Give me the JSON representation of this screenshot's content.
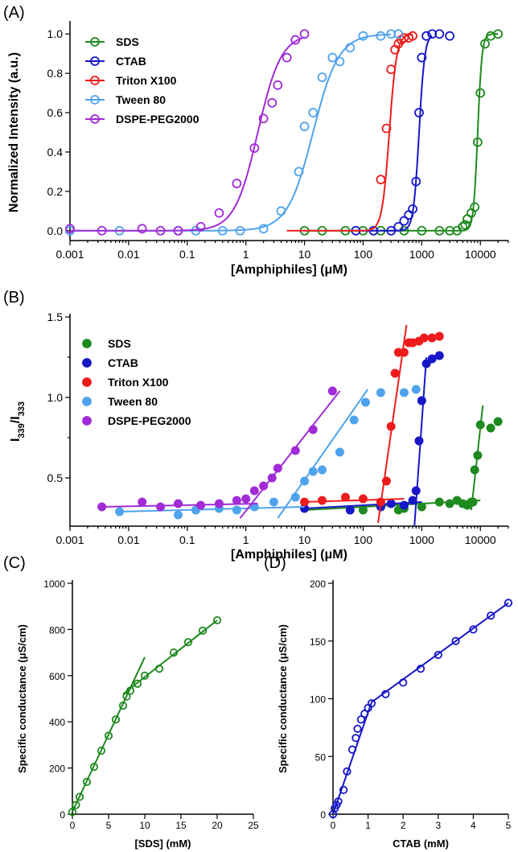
{
  "panels": {
    "A": "(A)",
    "B": "(B)",
    "C": "(C)",
    "D": "(D)"
  },
  "colors": {
    "SDS": "#1f8a1f",
    "CTAB": "#1717c8",
    "Triton X100": "#ee1c1c",
    "Tween 80": "#4fa3ec",
    "DSPE-PEG2000": "#a12bd6"
  },
  "chart_data": [
    {
      "id": "A",
      "type": "scatter",
      "xscale": "log",
      "xlim": [
        0.001,
        30000
      ],
      "ylim": [
        -0.05,
        1.05
      ],
      "xticks": [
        "0.001",
        "0.01",
        "0.1",
        "1",
        "10",
        "100",
        "1000",
        "10000"
      ],
      "yticks": [
        "0.0",
        "0.2",
        "0.4",
        "0.6",
        "0.8",
        "1.0"
      ],
      "xlabel": "[Amphiphiles] (μM)",
      "ylabel": "Normalized Intensity (a.u.)",
      "legend": "top-left",
      "markers": "open-circle",
      "fit": "sigmoid",
      "series": [
        {
          "name": "SDS",
          "x": [
            10,
            20,
            50,
            100,
            200,
            500,
            1000,
            2000,
            3000,
            4000,
            5000,
            5500,
            6000,
            7000,
            8000,
            9000,
            10000,
            12000,
            15000,
            20000
          ],
          "y": [
            0.0,
            0.0,
            0.0,
            0.0,
            0.0,
            0.0,
            0.0,
            0.0,
            0.0,
            0.0,
            0.02,
            0.03,
            0.06,
            0.09,
            0.12,
            0.45,
            0.7,
            0.95,
            0.99,
            1.0
          ],
          "fit_mid": 9000,
          "fit_slope": 12,
          "fit_start": 10,
          "fit_end": 20000
        },
        {
          "name": "CTAB",
          "x": [
            75,
            150,
            300,
            400,
            500,
            600,
            700,
            800,
            900,
            1000,
            1200,
            1500,
            2000,
            3000
          ],
          "y": [
            0.0,
            0.0,
            0.0,
            0.02,
            0.05,
            0.08,
            0.11,
            0.25,
            0.6,
            0.88,
            0.99,
            1.0,
            1.0,
            0.99
          ],
          "fit_mid": 900,
          "fit_slope": 9,
          "fit_start": 75,
          "fit_end": 1500
        },
        {
          "name": "Triton X100",
          "x": [
            200,
            250,
            300,
            350,
            400,
            450,
            500,
            600,
            700
          ],
          "y": [
            0.26,
            0.52,
            0.82,
            0.92,
            0.95,
            0.97,
            0.98,
            0.98,
            0.99
          ],
          "fit_mid": 280,
          "fit_slope": 7,
          "fit_start": 5,
          "fit_end": 700
        },
        {
          "name": "Tween 80",
          "x": [
            0.001,
            0.007,
            0.07,
            0.14,
            0.4,
            0.8,
            2,
            4,
            8,
            10,
            14,
            20,
            30,
            40,
            60,
            100,
            200,
            300,
            400
          ],
          "y": [
            0.0,
            0.0,
            0.0,
            0.0,
            0.0,
            0.0,
            0.01,
            0.1,
            0.3,
            0.53,
            0.6,
            0.78,
            0.88,
            0.86,
            0.93,
            0.99,
            0.99,
            1.0,
            1.0
          ],
          "fit_mid": 14,
          "fit_slope": 2.0,
          "fit_start": 0.001,
          "fit_end": 300
        },
        {
          "name": "DSPE-PEG2000",
          "x": [
            0.001,
            0.0035,
            0.017,
            0.035,
            0.07,
            0.17,
            0.35,
            0.7,
            1.4,
            2,
            2.8,
            3.5,
            5,
            7,
            10
          ],
          "y": [
            0.01,
            0.0,
            0.01,
            0.0,
            0.0,
            0.02,
            0.09,
            0.24,
            0.42,
            0.57,
            0.65,
            0.74,
            0.88,
            0.97,
            1.0
          ],
          "fit_mid": 1.6,
          "fit_slope": 2.2,
          "fit_start": 0.001,
          "fit_end": 10
        }
      ]
    },
    {
      "id": "B",
      "type": "scatter",
      "xscale": "log",
      "xlim": [
        0.001,
        30000
      ],
      "ylim": [
        0.2,
        1.5
      ],
      "xticks": [
        "0.001",
        "0.01",
        "0.1",
        "1",
        "10",
        "100",
        "1000",
        "10000"
      ],
      "yticks": [
        "0.5",
        "1.0",
        "1.5"
      ],
      "xlabel": "[Amphiphiles] (μM)",
      "ylabel": "I339/I333",
      "legend": "top-left",
      "markers": "filled-circle",
      "series": [
        {
          "name": "SDS",
          "x": [
            100,
            400,
            500,
            1000,
            2000,
            3000,
            4000,
            5000,
            6000,
            7000,
            7500,
            8000,
            9000,
            10000,
            15000,
            20000
          ],
          "y": [
            0.3,
            0.3,
            0.31,
            0.32,
            0.35,
            0.34,
            0.36,
            0.34,
            0.33,
            0.35,
            0.35,
            0.55,
            0.64,
            0.83,
            0.81,
            0.85
          ],
          "lines": [
            [
              [
                10,
                0.3
              ],
              [
                10000,
                0.36
              ]
            ],
            [
              [
                7000,
                0.3
              ],
              [
                11000,
                0.95
              ]
            ]
          ]
        },
        {
          "name": "CTAB",
          "x": [
            10,
            60,
            200,
            300,
            500,
            700,
            800,
            900,
            1000,
            1200,
            1500,
            2000
          ],
          "y": [
            0.31,
            0.3,
            0.32,
            0.34,
            0.33,
            0.36,
            0.42,
            0.73,
            0.98,
            1.21,
            1.24,
            1.26
          ],
          "lines": [
            [
              [
                10,
                0.31
              ],
              [
                1000,
                0.35
              ]
            ],
            [
              [
                750,
                0.2
              ],
              [
                1200,
                1.25
              ]
            ]
          ]
        },
        {
          "name": "Triton X100",
          "x": [
            10,
            20,
            50,
            100,
            200,
            250,
            300,
            350,
            400,
            500,
            600,
            700,
            900,
            1100,
            1500,
            2000
          ],
          "y": [
            0.35,
            0.36,
            0.38,
            0.37,
            0.35,
            0.48,
            0.82,
            1.15,
            1.28,
            1.28,
            1.34,
            1.34,
            1.35,
            1.37,
            1.37,
            1.38
          ],
          "lines": [
            [
              [
                10,
                0.35
              ],
              [
                500,
                0.37
              ]
            ],
            [
              [
                180,
                0.22
              ],
              [
                550,
                1.45
              ]
            ]
          ]
        },
        {
          "name": "Tween 80",
          "x": [
            0.007,
            0.07,
            0.14,
            0.35,
            0.7,
            1.4,
            3,
            7,
            10,
            14,
            20,
            40,
            70,
            110,
            200,
            500,
            800
          ],
          "y": [
            0.29,
            0.27,
            0.3,
            0.31,
            0.3,
            0.32,
            0.35,
            0.38,
            0.48,
            0.54,
            0.55,
            0.66,
            0.86,
            0.97,
            1.03,
            1.03,
            1.05
          ],
          "lines": [
            [
              [
                0.007,
                0.29
              ],
              [
                10,
                0.32
              ]
            ],
            [
              [
                3.5,
                0.25
              ],
              [
                120,
                1.05
              ]
            ]
          ]
        },
        {
          "name": "DSPE-PEG2000",
          "x": [
            0.0035,
            0.017,
            0.035,
            0.07,
            0.17,
            0.35,
            0.7,
            1,
            1.4,
            2,
            2.8,
            3.5,
            7,
            14,
            30
          ],
          "y": [
            0.32,
            0.35,
            0.32,
            0.34,
            0.33,
            0.34,
            0.36,
            0.37,
            0.42,
            0.45,
            0.5,
            0.56,
            0.67,
            0.8,
            1.04
          ],
          "lines": [
            [
              [
                0.0035,
                0.32
              ],
              [
                1.6,
                0.34
              ]
            ],
            [
              [
                0.8,
                0.25
              ],
              [
                40,
                1.04
              ]
            ]
          ]
        }
      ]
    },
    {
      "id": "C",
      "type": "scatter",
      "xlim": [
        0,
        25
      ],
      "ylim": [
        0,
        1000
      ],
      "xticks": [
        "0",
        "5",
        "10",
        "15",
        "20",
        "25"
      ],
      "yticks": [
        "0",
        "200",
        "400",
        "600",
        "800",
        "1000"
      ],
      "xlabel": "[SDS] (mM)",
      "ylabel": "Specific conductance (μS/cm)",
      "markers": "open-circle",
      "series": [
        {
          "name": "SDS",
          "x": [
            0,
            0.5,
            1,
            2,
            3,
            4,
            5,
            6,
            7,
            7.5,
            8,
            9,
            10,
            12,
            14,
            16,
            18,
            20
          ],
          "y": [
            10,
            40,
            75,
            140,
            205,
            275,
            340,
            410,
            470,
            510,
            535,
            565,
            600,
            630,
            700,
            745,
            795,
            840
          ],
          "lines": [
            [
              [
                0,
                10
              ],
              [
                10,
                680
              ]
            ],
            [
              [
                7,
                520
              ],
              [
                20,
                840
              ]
            ]
          ]
        }
      ]
    },
    {
      "id": "D",
      "type": "scatter",
      "xlim": [
        0,
        5
      ],
      "ylim": [
        0,
        200
      ],
      "xticks": [
        "0",
        "1",
        "2",
        "3",
        "4",
        "5"
      ],
      "yticks": [
        "0",
        "50",
        "100",
        "150",
        "200"
      ],
      "xlabel": "CTAB (mM)",
      "ylabel": "Specific conductance (μS/cm)",
      "markers": "open-circle",
      "series": [
        {
          "name": "CTAB",
          "x": [
            0,
            0.05,
            0.1,
            0.15,
            0.3,
            0.4,
            0.55,
            0.65,
            0.7,
            0.8,
            0.9,
            1.0,
            1.1,
            1.5,
            2,
            2.5,
            3,
            3.5,
            4,
            4.5,
            5
          ],
          "y": [
            0,
            5,
            8,
            11,
            21,
            37,
            56,
            66,
            74,
            82,
            87,
            92,
            96,
            104,
            114,
            126,
            138,
            150,
            160,
            172,
            183
          ],
          "lines": [
            [
              [
                0,
                0
              ],
              [
                1.1,
                97
              ]
            ],
            [
              [
                1.1,
                97
              ],
              [
                5,
                183
              ]
            ]
          ]
        }
      ]
    }
  ]
}
